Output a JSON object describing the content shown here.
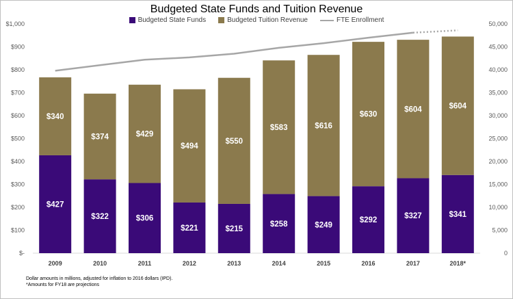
{
  "chart_data": {
    "type": "bar",
    "title": "Budgeted State Funds and Tuition Revenue",
    "categories": [
      "2009",
      "2010",
      "2011",
      "2012",
      "2013",
      "2014",
      "2015",
      "2016",
      "2017",
      "2018*"
    ],
    "series": [
      {
        "name": "Budgeted State Funds",
        "kind": "stacked-bar",
        "color": "#3a0a78",
        "values": [
          427,
          322,
          306,
          221,
          215,
          258,
          249,
          292,
          327,
          341
        ],
        "labels": [
          "$427",
          "$322",
          "$306",
          "$221",
          "$215",
          "$258",
          "$249",
          "$292",
          "$327",
          "$341"
        ]
      },
      {
        "name": "Budgeted Tuition Revenue",
        "kind": "stacked-bar",
        "color": "#8b7a4d",
        "values": [
          340,
          374,
          429,
          494,
          550,
          583,
          616,
          630,
          604,
          604
        ],
        "labels": [
          "$340",
          "$374",
          "$429",
          "$494",
          "$550",
          "$583",
          "$616",
          "$630",
          "$604",
          "$604"
        ]
      },
      {
        "name": "FTE Enrollment",
        "kind": "line",
        "axis": "right",
        "color": "#a6a6a6",
        "values": [
          39800,
          41000,
          42200,
          42700,
          43500,
          44800,
          45800,
          47000,
          48100,
          48600
        ],
        "projected_from_index": 8
      }
    ],
    "y_left": {
      "lim": [
        0,
        1000
      ],
      "ticks": [
        0,
        100,
        200,
        300,
        400,
        500,
        600,
        700,
        800,
        900,
        1000
      ],
      "tick_labels": [
        "$-",
        "$100",
        "$200",
        "$300",
        "$400",
        "$500",
        "$600",
        "$700",
        "$800",
        "$900",
        "$1,000"
      ]
    },
    "y_right": {
      "lim": [
        0,
        50000
      ],
      "ticks": [
        0,
        5000,
        10000,
        15000,
        20000,
        25000,
        30000,
        35000,
        40000,
        45000,
        50000
      ],
      "tick_labels": [
        "0",
        "5,000",
        "10,000",
        "15,000",
        "20,000",
        "25,000",
        "30,000",
        "35,000",
        "40,000",
        "45,000",
        "50,000"
      ]
    },
    "legend_position": "top-center",
    "grid": false
  },
  "footnotes": {
    "line1": "Dollar amounts in millions, adjusted for inflation to 2016 dollars (IPD).",
    "line2": "*Amounts for FY18 are projections"
  }
}
